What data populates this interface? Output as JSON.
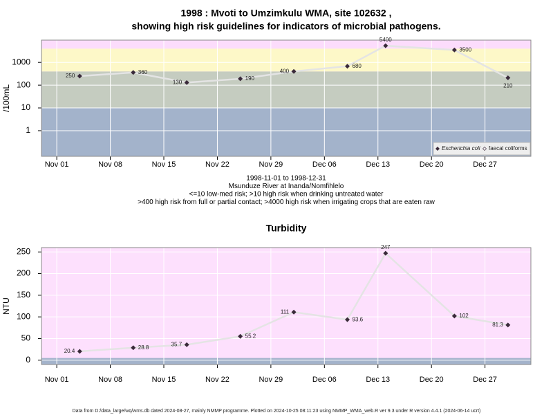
{
  "chart_data": [
    {
      "type": "line",
      "title": [
        "1998 : Mvoti to Umzimkulu WMA, site 102632 ,",
        "showing high risk guidelines for indicators of microbial pathogens."
      ],
      "subtitle": [
        "1998-11-01 to 1998-12-31",
        "Msunduze River at Inanda/Nomfihlelo",
        "<=10 low-med risk; >10 high risk when drinking untreated water",
        ">400 high risk from full or partial contact; >4000 high risk when irrigating crops that are eaten raw"
      ],
      "y_label": "/100mL",
      "log_scale": true,
      "x": [
        "1998-11-04",
        "1998-11-11",
        "1998-11-18",
        "1998-11-25",
        "1998-12-02",
        "1998-12-09",
        "1998-12-14",
        "1998-12-23",
        "1998-12-30"
      ],
      "series": [
        {
          "name": "Escherichia coli",
          "color": "#3a2a3a",
          "values": [
            250,
            360,
            130,
            190,
            400,
            680,
            5400,
            3500,
            210
          ]
        },
        {
          "name": "faecal coliforms",
          "color": "#3a2a3a",
          "values": [
            null,
            null,
            null,
            null,
            null,
            null,
            null,
            null,
            null
          ]
        }
      ],
      "xlim": [
        "1998-10-30",
        "1999-01-02"
      ],
      "xticks": [
        {
          "value": "1998-11-01",
          "label": "Nov 01"
        },
        {
          "value": "1998-11-08",
          "label": "Nov 08"
        },
        {
          "value": "1998-11-15",
          "label": "Nov 15"
        },
        {
          "value": "1998-11-22",
          "label": "Nov 22"
        },
        {
          "value": "1998-11-29",
          "label": "Nov 29"
        },
        {
          "value": "1998-12-06",
          "label": "Dec 06"
        },
        {
          "value": "1998-12-13",
          "label": "Dec 13"
        },
        {
          "value": "1998-12-20",
          "label": "Dec 20"
        },
        {
          "value": "1998-12-27",
          "label": "Dec 27"
        }
      ],
      "ylim": [
        0.075,
        9500
      ],
      "yticks": [
        1,
        10,
        100,
        1000
      ],
      "bands": [
        {
          "max": 10,
          "color": "#a3b3cb"
        },
        {
          "max": 400,
          "color": "#c5ccc0"
        },
        {
          "max": 4000,
          "color": "#fdf8c8"
        }
      ],
      "background": "#fcdcfc",
      "grid": true,
      "legend": "bottom-right"
    },
    {
      "type": "line",
      "title": [
        "Turbidity"
      ],
      "y_label": "NTU",
      "x": [
        "1998-11-04",
        "1998-11-11",
        "1998-11-18",
        "1998-11-25",
        "1998-12-02",
        "1998-12-09",
        "1998-12-14",
        "1998-12-23",
        "1998-12-30"
      ],
      "series": [
        {
          "name": "Turbidity",
          "color": "#3a2a3a",
          "values": [
            20.4,
            28.8,
            35.7,
            55.2,
            111,
            93.6,
            247,
            102,
            81.3
          ]
        }
      ],
      "xlim": [
        "1998-10-30",
        "1999-01-02"
      ],
      "xticks": [
        {
          "value": "1998-11-01",
          "label": "Nov 01"
        },
        {
          "value": "1998-11-08",
          "label": "Nov 08"
        },
        {
          "value": "1998-11-15",
          "label": "Nov 15"
        },
        {
          "value": "1998-11-22",
          "label": "Nov 22"
        },
        {
          "value": "1998-11-29",
          "label": "Nov 29"
        },
        {
          "value": "1998-12-06",
          "label": "Dec 06"
        },
        {
          "value": "1998-12-13",
          "label": "Dec 13"
        },
        {
          "value": "1998-12-20",
          "label": "Dec 20"
        },
        {
          "value": "1998-12-27",
          "label": "Dec 27"
        }
      ],
      "ylim": [
        -10,
        260
      ],
      "yticks": [
        0,
        50,
        100,
        150,
        200,
        250
      ],
      "bands": [
        {
          "max": 5,
          "color": "#a3b3cb"
        }
      ],
      "background": "#fde0fd",
      "grid": true
    }
  ],
  "footer": "Data from D:/data_large/wq/wms.db dated 2024-08-27, mainly NMMP programme. Plotted on 2024-10-25 08:11:23 using NMMP_WMA_web.R ver 9.3 under R version 4.4.1 (2024-06-14 ucrt)"
}
